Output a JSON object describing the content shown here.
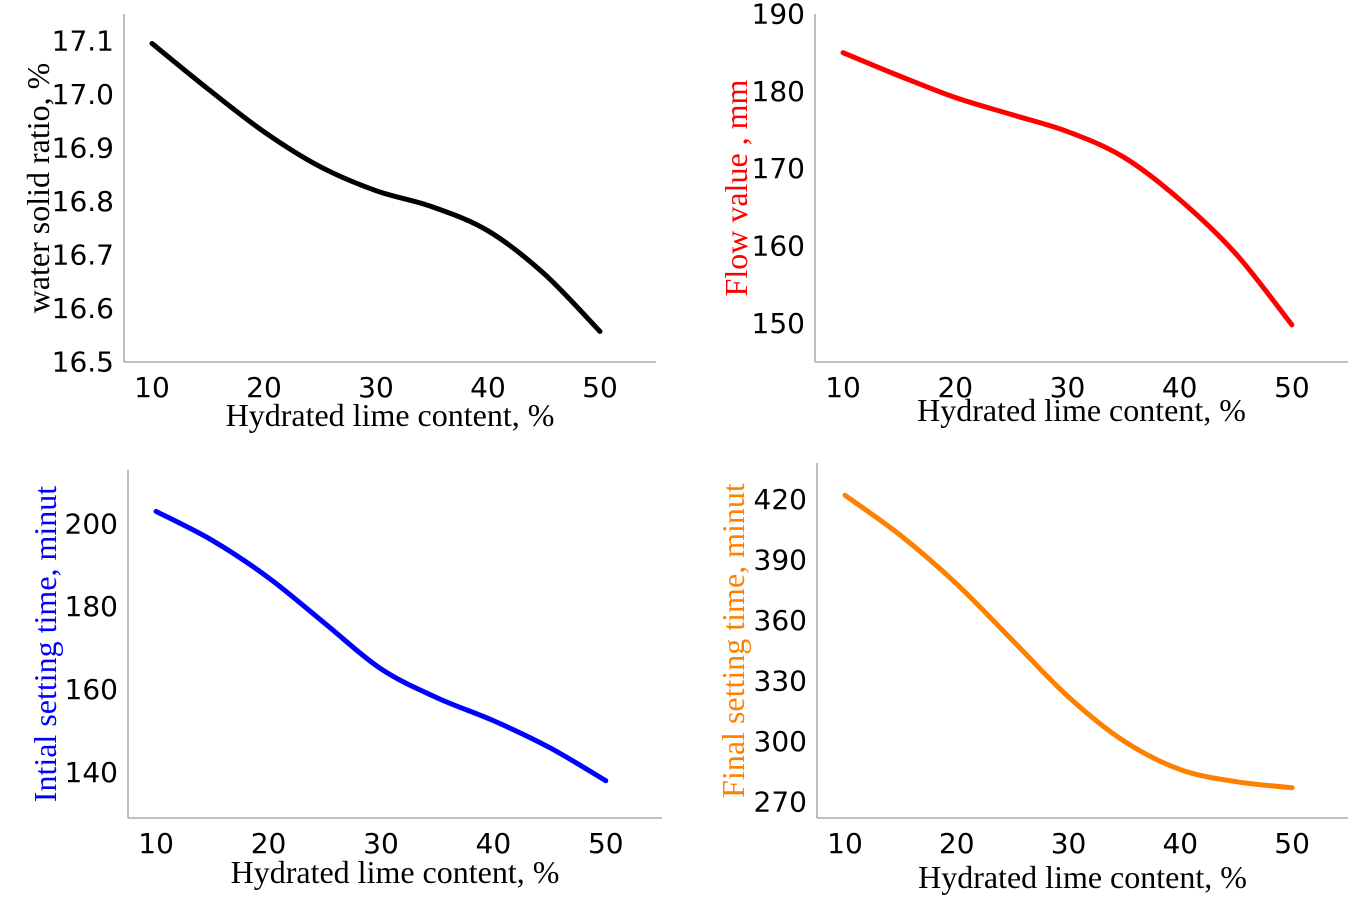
{
  "chart_data": [
    {
      "type": "line",
      "title": "",
      "xlabel": "Hydrated lime content, %",
      "ylabel": "water  solid ratio, %",
      "color": "#000000",
      "xlim": [
        7.5,
        55
      ],
      "ylim": [
        16.5,
        17.15
      ],
      "xticks": [
        "10",
        "20",
        "30",
        "40",
        "50"
      ],
      "yticks": [
        "16.5",
        "16.6",
        "16.7",
        "16.8",
        "16.9",
        "17.0",
        "17.1"
      ],
      "x": [
        10,
        15,
        20,
        25,
        30,
        35,
        40,
        45,
        50
      ],
      "y": [
        17.095,
        17.01,
        16.93,
        16.865,
        16.82,
        16.79,
        16.745,
        16.665,
        16.557
      ]
    },
    {
      "type": "line",
      "title": "",
      "xlabel": "Hydrated lime content, %",
      "ylabel": "Flow  value , mm",
      "color": "#ff0000",
      "xlim": [
        7.5,
        55
      ],
      "ylim": [
        145,
        190
      ],
      "xticks": [
        "10",
        "20",
        "30",
        "40",
        "50"
      ],
      "yticks": [
        "150",
        "160",
        "170",
        "180",
        "190"
      ],
      "x": [
        10,
        15,
        20,
        25,
        30,
        35,
        40,
        45,
        50
      ],
      "y": [
        185,
        182,
        179.2,
        177,
        174.8,
        171.5,
        166,
        159,
        149.8
      ]
    },
    {
      "type": "line",
      "title": "",
      "xlabel": "Hydrated lime content, %",
      "ylabel": "Intial setting time, minut",
      "color": "#0000ff",
      "xlim": [
        7.5,
        55
      ],
      "ylim": [
        129,
        213
      ],
      "xticks": [
        "10",
        "20",
        "30",
        "40",
        "50"
      ],
      "yticks": [
        "140",
        "160",
        "180",
        "200"
      ],
      "x": [
        10,
        15,
        20,
        25,
        30,
        35,
        40,
        45,
        50
      ],
      "y": [
        203,
        196,
        187,
        176,
        165,
        158,
        152.5,
        146,
        138
      ]
    },
    {
      "type": "line",
      "title": "",
      "xlabel": "Hydrated lime content, %",
      "ylabel": "Final setting time, minut",
      "color": "#ff8000",
      "xlim": [
        7.5,
        55
      ],
      "ylim": [
        262,
        438
      ],
      "xticks": [
        "10",
        "20",
        "30",
        "40",
        "50"
      ],
      "yticks": [
        "270",
        "300",
        "330",
        "360",
        "390",
        "420"
      ],
      "x": [
        10,
        15,
        20,
        25,
        30,
        35,
        40,
        45,
        50
      ],
      "y": [
        422,
        402,
        378,
        350,
        322,
        300,
        286,
        280,
        277
      ]
    }
  ]
}
